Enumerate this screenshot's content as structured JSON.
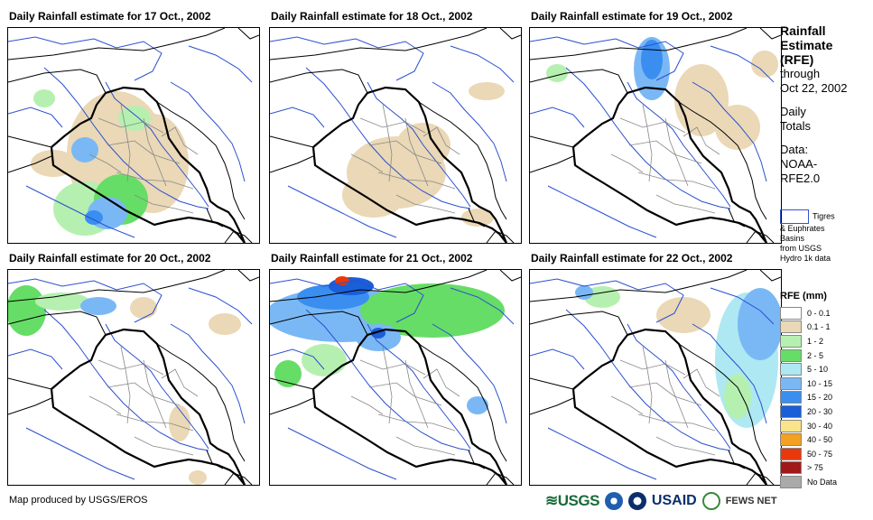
{
  "panels": [
    {
      "title": "Daily Rainfall estimate for 17 Oct., 2002"
    },
    {
      "title": "Daily Rainfall estimate for 18 Oct., 2002"
    },
    {
      "title": "Daily Rainfall estimate for 19 Oct., 2002"
    },
    {
      "title": "Daily Rainfall estimate for 20 Oct., 2002"
    },
    {
      "title": "Daily Rainfall estimate for 21 Oct., 2002"
    },
    {
      "title": "Daily Rainfall estimate for 22 Oct., 2002"
    }
  ],
  "sidebar": {
    "title_1": "Rainfall",
    "title_2": "Estimate",
    "title_3": "(RFE)",
    "through": "through",
    "date": "Oct 22, 2002",
    "daily_1": "Daily",
    "daily_2": "Totals",
    "data_1": "Data:",
    "data_2": "NOAA-",
    "data_3": "RFE2.0",
    "basin_1": "Tigres",
    "basin_2": "& Euphrates",
    "basin_3": "Basins",
    "basin_4": "from USGS",
    "basin_5": "Hydro 1k data"
  },
  "legend": {
    "title": "RFE (mm)",
    "items": [
      {
        "label": "0 - 0.1",
        "color": "#ffffff"
      },
      {
        "label": "0.1 - 1",
        "color": "#ead8b6"
      },
      {
        "label": "1 - 2",
        "color": "#b5f0b0"
      },
      {
        "label": "2 - 5",
        "color": "#66dd66"
      },
      {
        "label": "5 - 10",
        "color": "#aee8f2"
      },
      {
        "label": "10 - 15",
        "color": "#7ab8f5"
      },
      {
        "label": "15 - 20",
        "color": "#3a8ef0"
      },
      {
        "label": "20 - 30",
        "color": "#1a5ed8"
      },
      {
        "label": "30 - 40",
        "color": "#fbe38a"
      },
      {
        "label": "40 - 50",
        "color": "#f4a020"
      },
      {
        "label": "50 - 75",
        "color": "#e8380c"
      },
      {
        "label": "> 75",
        "color": "#a01818"
      },
      {
        "label": "No Data",
        "color": "#aaaaaa"
      }
    ]
  },
  "footer": {
    "credit": "Map produced by USGS/EROS",
    "logo_usgs": "≋USGS",
    "logo_usaid": "USAID",
    "logo_fews": "FEWS NET"
  }
}
